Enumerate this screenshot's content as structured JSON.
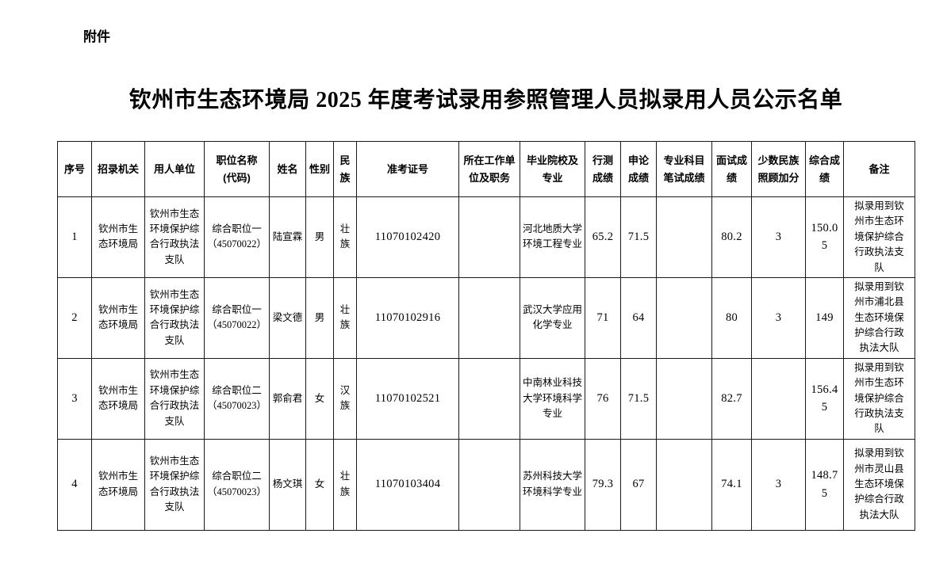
{
  "page": {
    "attachment_label": "附件",
    "title": "钦州市生态环境局 2025 年度考试录用参照管理人员拟录用人员公示名单"
  },
  "table": {
    "headers": [
      "序号",
      "招录机关",
      "用人单位",
      "职位名称\n(代码)",
      "姓名",
      "性别",
      "民族",
      "准考证号",
      "所在工作单位及职务",
      "毕业院校及专业",
      "行测成绩",
      "申论成绩",
      "专业科目笔试成绩",
      "面试成绩",
      "少数民族照顾加分",
      "综合成绩",
      "备注"
    ],
    "rows": [
      {
        "cells": [
          "1",
          "钦州市生态环境局",
          "钦州市生态环境保护综合行政执法支队",
          "综合职位一（45070022）",
          "陆宣霖",
          "男",
          "壮族",
          "11070102420",
          "",
          "河北地质大学环境工程专业",
          "65.2",
          "71.5",
          "",
          "80.2",
          "3",
          "150.05",
          "拟录用到钦州市生态环境保护综合行政执法支队"
        ]
      },
      {
        "cells": [
          "2",
          "钦州市生态环境局",
          "钦州市生态环境保护综合行政执法支队",
          "综合职位一（45070022）",
          "梁文德",
          "男",
          "壮族",
          "11070102916",
          "",
          "武汉大学应用化学专业",
          "71",
          "64",
          "",
          "80",
          "3",
          "149",
          "拟录用到钦州市浦北县生态环境保护综合行政执法大队"
        ]
      },
      {
        "cells": [
          "3",
          "钦州市生态环境局",
          "钦州市生态环境保护综合行政执法支队",
          "综合职位二（45070023）",
          "郭俞君",
          "女",
          "汉族",
          "11070102521",
          "",
          "中南林业科技大学环境科学专业",
          "76",
          "71.5",
          "",
          "82.7",
          "",
          "156.45",
          "拟录用到钦州市生态环境保护综合行政执法支队"
        ]
      },
      {
        "cells": [
          "4",
          "钦州市生态环境局",
          "钦州市生态环境保护综合行政执法支队",
          "综合职位二（45070023）",
          "杨文琪",
          "女",
          "壮族",
          "11070103404",
          "",
          "苏州科技大学环境科学专业",
          "79.3",
          "67",
          "",
          "74.1",
          "3",
          "148.75",
          "拟录用到钦州市灵山县生态环境保护综合行政执法大队"
        ]
      }
    ]
  }
}
